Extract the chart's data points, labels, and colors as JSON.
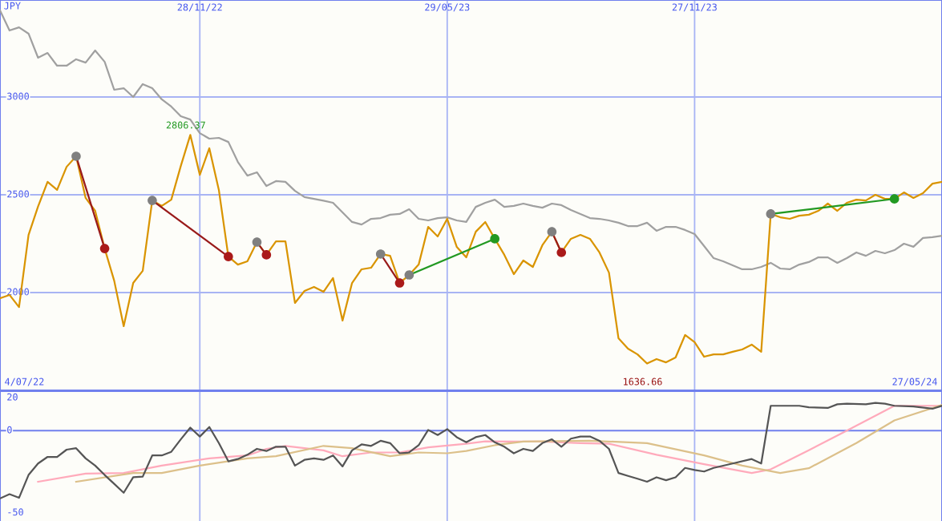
{
  "chart_data": [
    {
      "type": "line",
      "ylabel": "JPY",
      "grid": true,
      "xlim": [
        "2022-07-04",
        "2024-05-27"
      ],
      "xticks": [
        {
          "value": "2022-11-28",
          "label": "28/11/22"
        },
        {
          "value": "2023-05-29",
          "label": "29/05/23"
        },
        {
          "value": "2023-11-27",
          "label": "27/11/23"
        }
      ],
      "ylim": [
        1500,
        3496
      ],
      "yticks": [
        2000,
        2500,
        3000
      ],
      "annotations": [
        {
          "text": "2806.37",
          "x": "2022-11-21",
          "y": 2806
        },
        {
          "text": "1636.66",
          "x": "2023-10-23",
          "y": 1637
        },
        "4/07/22",
        "27/05/24"
      ],
      "x": [
        "2022-07-04",
        "2022-07-11",
        "2022-07-18",
        "2022-07-25",
        "2022-08-01",
        "2022-08-08",
        "2022-08-15",
        "2022-08-22",
        "2022-08-29",
        "2022-09-05",
        "2022-09-12",
        "2022-09-19",
        "2022-09-26",
        "2022-10-03",
        "2022-10-10",
        "2022-10-17",
        "2022-10-24",
        "2022-10-31",
        "2022-11-07",
        "2022-11-14",
        "2022-11-21",
        "2022-11-28",
        "2022-12-05",
        "2022-12-12",
        "2022-12-19",
        "2022-12-26",
        "2023-01-02",
        "2023-01-09",
        "2023-01-16",
        "2023-01-23",
        "2023-01-30",
        "2023-02-06",
        "2023-02-13",
        "2023-02-20",
        "2023-02-27",
        "2023-03-06",
        "2023-03-13",
        "2023-03-20",
        "2023-03-27",
        "2023-04-03",
        "2023-04-10",
        "2023-04-17",
        "2023-04-24",
        "2023-05-01",
        "2023-05-08",
        "2023-05-15",
        "2023-05-22",
        "2023-05-29",
        "2023-06-05",
        "2023-06-12",
        "2023-06-19",
        "2023-06-26",
        "2023-07-03",
        "2023-07-10",
        "2023-07-17",
        "2023-07-24",
        "2023-07-31",
        "2023-08-07",
        "2023-08-14",
        "2023-08-21",
        "2023-08-28",
        "2023-09-04",
        "2023-09-11",
        "2023-09-18",
        "2023-09-25",
        "2023-10-02",
        "2023-10-09",
        "2023-10-16",
        "2023-10-23",
        "2023-10-30",
        "2023-11-06",
        "2023-11-13",
        "2023-11-20",
        "2023-11-27",
        "2023-12-04",
        "2023-12-11",
        "2023-12-18",
        "2023-12-25",
        "2024-01-01",
        "2024-01-08",
        "2024-01-15",
        "2024-01-22",
        "2024-01-29",
        "2024-02-05",
        "2024-02-12",
        "2024-02-19",
        "2024-02-26",
        "2024-03-04",
        "2024-03-11",
        "2024-03-18",
        "2024-03-25",
        "2024-04-01",
        "2024-04-08",
        "2024-04-15",
        "2024-04-22",
        "2024-04-29",
        "2024-05-06",
        "2024-05-13",
        "2024-05-20",
        "2024-05-27"
      ],
      "series": [
        {
          "color": "#a0a0a0",
          "values": [
            3443,
            3340,
            3356,
            3324,
            3201,
            3225,
            3160,
            3160,
            3193,
            3176,
            3238,
            3180,
            3037,
            3045,
            3000,
            3066,
            3045,
            2988,
            2951,
            2902,
            2885,
            2815,
            2787,
            2791,
            2770,
            2668,
            2598,
            2615,
            2545,
            2570,
            2566,
            2520,
            2488,
            2479,
            2470,
            2459,
            2410,
            2361,
            2348,
            2377,
            2381,
            2398,
            2402,
            2426,
            2377,
            2369,
            2381,
            2385,
            2369,
            2361,
            2438,
            2459,
            2475,
            2438,
            2443,
            2455,
            2443,
            2434,
            2455,
            2447,
            2422,
            2402,
            2381,
            2377,
            2369,
            2357,
            2340,
            2340,
            2357,
            2316,
            2336,
            2336,
            2320,
            2299,
            2238,
            2176,
            2160,
            2139,
            2119,
            2119,
            2131,
            2152,
            2123,
            2119,
            2143,
            2156,
            2180,
            2180,
            2152,
            2176,
            2205,
            2188,
            2213,
            2201,
            2217,
            2250,
            2234,
            2279,
            2283,
            2291
          ]
        },
        {
          "color": "#d99400",
          "values": [
            1971,
            1988,
            1926,
            2295,
            2440,
            2566,
            2525,
            2643,
            2697,
            2484,
            2418,
            2225,
            2061,
            1828,
            2049,
            2111,
            2471,
            2443,
            2475,
            2647,
            2806,
            2602,
            2738,
            2525,
            2184,
            2143,
            2160,
            2258,
            2193,
            2262,
            2262,
            1947,
            2008,
            2029,
            2004,
            2074,
            1857,
            2049,
            2119,
            2127,
            2197,
            2188,
            2049,
            2090,
            2143,
            2336,
            2287,
            2377,
            2234,
            2180,
            2311,
            2361,
            2275,
            2193,
            2094,
            2164,
            2131,
            2242,
            2311,
            2205,
            2275,
            2295,
            2275,
            2205,
            2102,
            1766,
            1713,
            1684,
            1637,
            1660,
            1643,
            1668,
            1783,
            1746,
            1672,
            1684,
            1684,
            1697,
            1709,
            1734,
            1697,
            2402,
            2385,
            2377,
            2393,
            2398,
            2418,
            2455,
            2418,
            2459,
            2475,
            2471,
            2500,
            2479,
            2479,
            2512,
            2484,
            2508,
            2557,
            2566
          ]
        },
        {
          "color": "#991a1a",
          "marker": "circle",
          "x": [
            "2022-08-29",
            "2022-09-19"
          ],
          "values": [
            2697,
            2225
          ],
          "colors": [
            "#808080",
            "#aa1a1a"
          ]
        },
        {
          "color": "#991a1a",
          "marker": "circle",
          "x": [
            "2022-10-24",
            "2022-12-19"
          ],
          "values": [
            2471,
            2184
          ],
          "colors": [
            "#808080",
            "#aa1a1a"
          ]
        },
        {
          "color": "#991a1a",
          "marker": "circle",
          "x": [
            "2023-01-09",
            "2023-01-16"
          ],
          "values": [
            2258,
            2193
          ],
          "colors": [
            "#808080",
            "#aa1a1a"
          ]
        },
        {
          "color": "#991a1a",
          "marker": "circle",
          "x": [
            "2023-04-10",
            "2023-04-24"
          ],
          "values": [
            2197,
            2049
          ],
          "colors": [
            "#808080",
            "#aa1a1a"
          ]
        },
        {
          "color": "#991a1a",
          "marker": "circle",
          "x": [
            "2023-08-14",
            "2023-08-21"
          ],
          "values": [
            2311,
            2205
          ],
          "colors": [
            "#808080",
            "#aa1a1a"
          ]
        },
        {
          "color": "#229922",
          "marker": "circle",
          "x": [
            "2023-05-01",
            "2023-07-03"
          ],
          "values": [
            2090,
            2275
          ],
          "colors": [
            "#808080",
            "#229922"
          ]
        },
        {
          "color": "#229922",
          "marker": "circle",
          "x": [
            "2024-01-22",
            "2024-04-22"
          ],
          "values": [
            2402,
            2479
          ],
          "colors": [
            "#808080",
            "#229922"
          ]
        }
      ]
    },
    {
      "type": "line",
      "tick_labels": "y",
      "grid": "x",
      "xlim": [
        "2022-07-04",
        "2024-05-27"
      ],
      "xticks": [
        {
          "value": "2022-11-28",
          "label": null
        },
        {
          "value": "2023-05-29",
          "label": null
        },
        {
          "value": "2023-11-27",
          "label": null
        }
      ],
      "ylim": [
        -55,
        24
      ],
      "yticks": [
        -50,
        0,
        20
      ],
      "ref_lines": [
        {
          "axis": "y",
          "value": 0,
          "color": "#7080ee"
        }
      ],
      "series": [
        {
          "color": "#ffaabb",
          "x": [
            "2022-08-01",
            "2022-09-05",
            "2022-10-03",
            "2022-10-31",
            "2022-12-05",
            "2023-01-02",
            "2023-01-16",
            "2023-01-30",
            "2023-02-27",
            "2023-03-13",
            "2023-04-03",
            "2023-04-24",
            "2023-05-15",
            "2023-06-12",
            "2023-06-26",
            "2023-07-17",
            "2023-08-07",
            "2023-09-04",
            "2023-09-25",
            "2023-10-30",
            "2023-12-04",
            "2024-01-08",
            "2024-01-22",
            "2024-02-19",
            "2024-03-18",
            "2024-04-22",
            "2024-05-27"
          ],
          "values": [
            -31.1,
            -26.2,
            -25.8,
            -21.3,
            -16.9,
            -15.1,
            -11.1,
            -9.3,
            -12,
            -15.6,
            -13.3,
            -13.3,
            -10.2,
            -8,
            -6.5,
            -6.7,
            -6.7,
            -7.6,
            -8,
            -14.7,
            -20.4,
            -25.8,
            -23.6,
            -12,
            0,
            15.1,
            15.1
          ]
        },
        {
          "color": "#dcc08a",
          "x": [
            "2022-08-29",
            "2022-10-10",
            "2022-10-31",
            "2022-11-28",
            "2023-01-02",
            "2023-01-23",
            "2023-02-27",
            "2023-03-20",
            "2023-04-17",
            "2023-05-08",
            "2023-05-29",
            "2023-06-12",
            "2023-07-03",
            "2023-07-24",
            "2023-09-11",
            "2023-10-23",
            "2023-12-04",
            "2024-01-01",
            "2024-01-29",
            "2024-02-19",
            "2024-03-25",
            "2024-04-22",
            "2024-05-27"
          ],
          "values": [
            -31.1,
            -25.8,
            -25.8,
            -21.3,
            -16.9,
            -15.6,
            -9.3,
            -10.7,
            -15.6,
            -13.3,
            -13.8,
            -12.4,
            -8.9,
            -6.7,
            -6.2,
            -7.6,
            -15.1,
            -21.3,
            -25.8,
            -22.9,
            -7.6,
            6.2,
            15.6
          ]
        },
        {
          "color": "#555555",
          "x": [
            "2022-07-04",
            "2022-07-11",
            "2022-07-18",
            "2022-07-25",
            "2022-08-01",
            "2022-08-08",
            "2022-08-15",
            "2022-08-22",
            "2022-08-29",
            "2022-09-05",
            "2022-09-12",
            "2022-09-19",
            "2022-09-26",
            "2022-10-03",
            "2022-10-10",
            "2022-10-17",
            "2022-10-24",
            "2022-10-31",
            "2022-11-07",
            "2022-11-14",
            "2022-11-21",
            "2022-11-28",
            "2022-12-05",
            "2022-12-12",
            "2022-12-19",
            "2022-12-26",
            "2023-01-02",
            "2023-01-09",
            "2023-01-16",
            "2023-01-23",
            "2023-01-30",
            "2023-02-06",
            "2023-02-13",
            "2023-02-20",
            "2023-02-27",
            "2023-03-06",
            "2023-03-13",
            "2023-03-20",
            "2023-03-27",
            "2023-04-03",
            "2023-04-10",
            "2023-04-17",
            "2023-04-24",
            "2023-05-01",
            "2023-05-08",
            "2023-05-15",
            "2023-05-22",
            "2023-05-29",
            "2023-06-05",
            "2023-06-12",
            "2023-06-19",
            "2023-06-26",
            "2023-07-03",
            "2023-07-10",
            "2023-07-17",
            "2023-07-24",
            "2023-07-31",
            "2023-08-07",
            "2023-08-14",
            "2023-08-21",
            "2023-08-28",
            "2023-09-04",
            "2023-09-11",
            "2023-09-18",
            "2023-09-25",
            "2023-10-02",
            "2023-10-09",
            "2023-10-16",
            "2023-10-23",
            "2023-10-30",
            "2023-11-06",
            "2023-11-13",
            "2023-11-20",
            "2023-11-27",
            "2023-12-04",
            "2023-12-11",
            "2023-12-25",
            "2024-01-08",
            "2024-01-15",
            "2024-01-22",
            "2024-02-12",
            "2024-02-19",
            "2024-03-04",
            "2024-03-11",
            "2024-03-18",
            "2024-04-01",
            "2024-04-08",
            "2024-04-15",
            "2024-04-22",
            "2024-05-06",
            "2024-05-20",
            "2024-05-27"
          ],
          "values": [
            -41.3,
            -38.7,
            -40.9,
            -27,
            -20,
            -16,
            -16,
            -11.6,
            -10.7,
            -16.9,
            -21.3,
            -27,
            -32.4,
            -37.8,
            -28.4,
            -28,
            -15.1,
            -15.1,
            -12.9,
            -5.3,
            1.8,
            -3.6,
            2.2,
            -7.6,
            -18.7,
            -17.3,
            -14.7,
            -11.1,
            -12.4,
            -9.8,
            -9.8,
            -21.3,
            -17.8,
            -16.9,
            -17.8,
            -15.1,
            -21.8,
            -12,
            -8.4,
            -9.3,
            -6.2,
            -7.6,
            -13.8,
            -13.3,
            -8.9,
            0.4,
            -2.7,
            0.9,
            -4,
            -7.1,
            -4,
            -2.7,
            -7.1,
            -9.8,
            -13.8,
            -11.1,
            -12.4,
            -7.6,
            -5.3,
            -9.8,
            -4.9,
            -3.6,
            -3.6,
            -6.2,
            -11.1,
            -25.8,
            -27.6,
            -29.3,
            -31.1,
            -28.4,
            -30.2,
            -28.4,
            -22.7,
            -24,
            -24.9,
            -22.7,
            -20,
            -17.3,
            -20,
            15.1,
            15.1,
            14.2,
            13.8,
            16,
            16.4,
            16,
            16.9,
            16.4,
            15.1,
            14.7,
            13.3,
            15.1
          ]
        }
      ]
    }
  ]
}
